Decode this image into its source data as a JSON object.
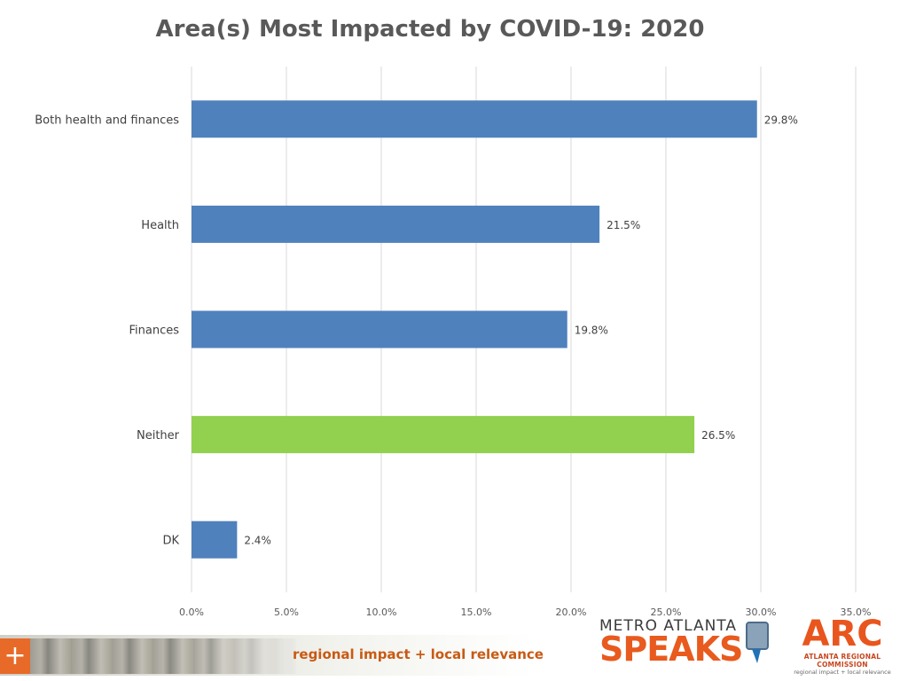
{
  "chart_data": {
    "type": "bar",
    "orientation": "horizontal",
    "title": "Area(s) Most Impacted by COVID-19: 2020",
    "xlabel": "",
    "ylabel": "",
    "categories": [
      "Both health and finances",
      "Health",
      "Finances",
      "Neither",
      "DK"
    ],
    "values": [
      29.8,
      21.5,
      19.8,
      26.5,
      2.4
    ],
    "data_labels": [
      "29.8%",
      "21.5%",
      "19.8%",
      "26.5%",
      "2.4%"
    ],
    "bar_colors": [
      "#4f81bd",
      "#4f81bd",
      "#4f81bd",
      "#92d050",
      "#4f81bd"
    ],
    "xlim": [
      0,
      35
    ],
    "xticks": [
      0,
      5,
      10,
      15,
      20,
      25,
      30,
      35
    ],
    "xtick_labels": [
      "0.0%",
      "5.0%",
      "10.0%",
      "15.0%",
      "20.0%",
      "25.0%",
      "30.0%",
      "35.0%"
    ],
    "grid": "vertical",
    "legend": "none"
  },
  "footer": {
    "tagline": "regional impact + local relevance",
    "plus_glyph": "+",
    "logo_metro_top": "METRO ATLANTA",
    "logo_metro_bottom": "SPEAKS",
    "logo_arc_mark": "ARC",
    "logo_arc_name": "ATLANTA REGIONAL COMMISSION",
    "logo_arc_sub": "regional impact + local relevance"
  }
}
